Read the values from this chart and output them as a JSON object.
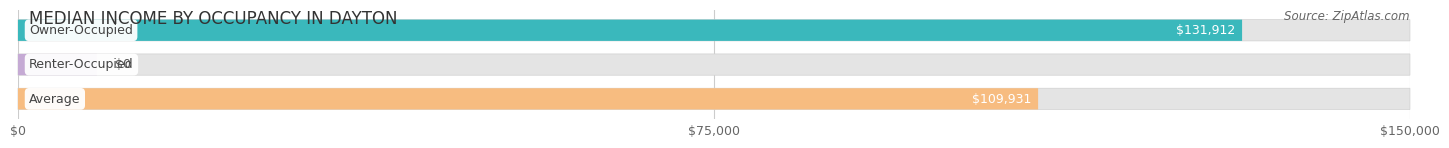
{
  "title": "MEDIAN INCOME BY OCCUPANCY IN DAYTON",
  "source": "Source: ZipAtlas.com",
  "categories": [
    "Owner-Occupied",
    "Renter-Occupied",
    "Average"
  ],
  "values": [
    131912,
    0,
    109931
  ],
  "value_labels": [
    "$131,912",
    "$0",
    "$109,931"
  ],
  "bar_colors": [
    "#3ab8bc",
    "#c5aad4",
    "#f7bc80"
  ],
  "bar_bg_color": "#e8e8e8",
  "xlim": [
    0,
    150000
  ],
  "xticks": [
    0,
    75000,
    150000
  ],
  "xtick_labels": [
    "$0",
    "$75,000",
    "$150,000"
  ],
  "title_fontsize": 12,
  "source_fontsize": 8.5,
  "label_fontsize": 9,
  "value_fontsize": 9,
  "tick_fontsize": 9,
  "background_color": "#ffffff",
  "bar_bg_gray": "#e4e4e4",
  "renter_bar_width": 8500
}
